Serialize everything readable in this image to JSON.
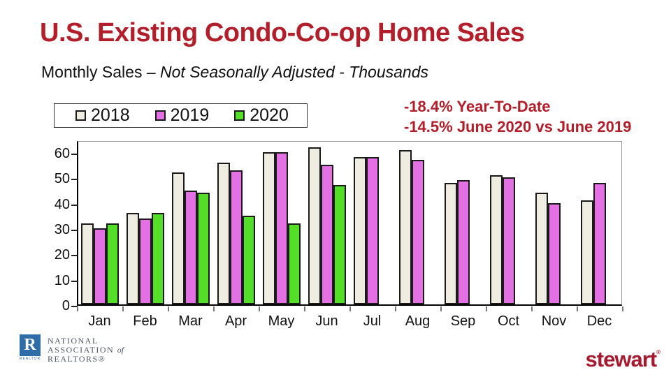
{
  "page": {
    "title": "U.S. Existing Condo-Co-op Home Sales",
    "subtitle_regular": "Monthly Sales – ",
    "subtitle_italic": "Not Seasonally Adjusted - Thousands"
  },
  "annotations": {
    "line1": "-18.4% Year-To-Date",
    "line2": "-14.5% June 2020 vs June 2019"
  },
  "colors": {
    "title_red": "#B21E29",
    "annotation_red": "#B21E29",
    "bar_2018": "#EFECE1",
    "bar_2019": "#E471E4",
    "bar_2020": "#55DE28",
    "bar_border": "#1a1a1a",
    "nar_blue": "#2E6DA8",
    "stewart_red": "#A6192E"
  },
  "chart_data": {
    "type": "bar",
    "title": "U.S. Existing Condo-Co-op Home Sales",
    "subtitle": "Monthly Sales – Not Seasonally Adjusted - Thousands",
    "xlabel": "",
    "ylabel": "Thousands",
    "ylim": [
      0,
      65
    ],
    "yticks": [
      0,
      10,
      20,
      30,
      40,
      50,
      60
    ],
    "grid": false,
    "legend_position": "top-left",
    "categories": [
      "Jan",
      "Feb",
      "Mar",
      "Apr",
      "May",
      "Jun",
      "Jul",
      "Aug",
      "Sep",
      "Oct",
      "Nov",
      "Dec"
    ],
    "series": [
      {
        "name": "2018",
        "color": "#EFECE1",
        "values": [
          32,
          36,
          52,
          56,
          60,
          62,
          58,
          61,
          48,
          51,
          44,
          41
        ]
      },
      {
        "name": "2019",
        "color": "#E471E4",
        "values": [
          30,
          34,
          45,
          53,
          60,
          55,
          58,
          57,
          49,
          50,
          40,
          48
        ]
      },
      {
        "name": "2020",
        "color": "#55DE28",
        "values": [
          32,
          36,
          44,
          35,
          32,
          47,
          null,
          null,
          null,
          null,
          null,
          null
        ]
      }
    ]
  },
  "footer": {
    "nar": {
      "r_letter": "R",
      "realtor_word": "REALTOR",
      "line1": "NATIONAL",
      "line2_main": "ASSOCIATION ",
      "line2_of": "of",
      "line3": "REALTORS®"
    },
    "stewart": {
      "text": "stewart",
      "mark": "®"
    }
  }
}
